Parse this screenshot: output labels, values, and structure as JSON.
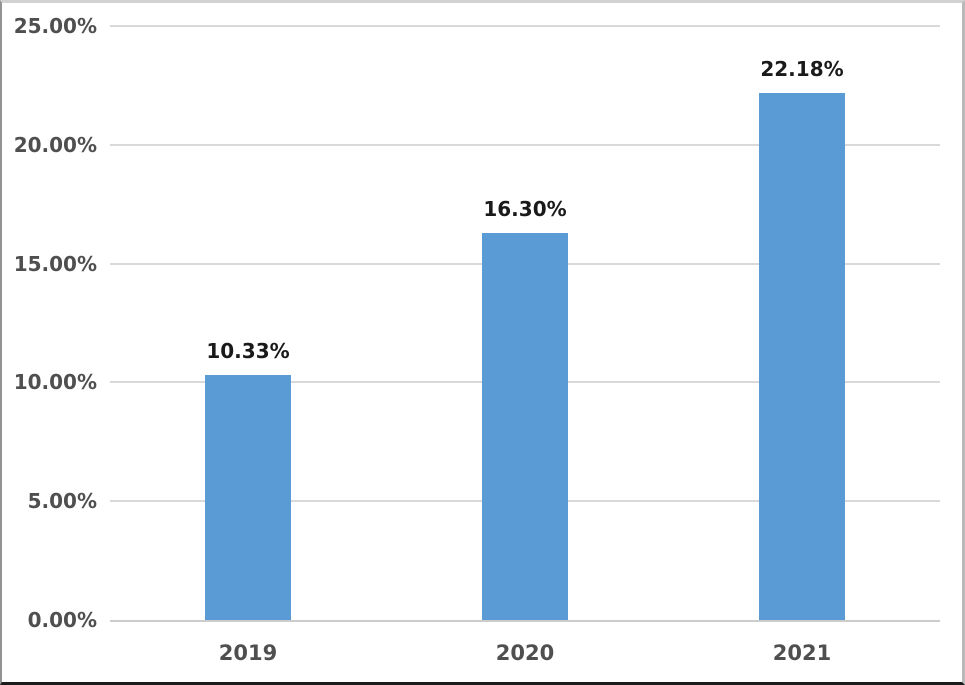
{
  "chart_data": {
    "type": "bar",
    "title": "",
    "categories": [
      "2019",
      "2020",
      "2021"
    ],
    "values": [
      10.33,
      16.3,
      22.18
    ],
    "data_labels": [
      "10.33%",
      "16.30%",
      "22.18%"
    ],
    "xlabel": "",
    "ylabel": "",
    "ylim": [
      0,
      25
    ],
    "yticks": [
      0,
      5,
      10,
      15,
      20,
      25
    ],
    "ytick_labels": [
      "0.00%",
      "5.00%",
      "10.00%",
      "15.00%",
      "20.00%",
      "25.00%"
    ],
    "grid": "horizontal-only",
    "legend": "none",
    "colors": {
      "bar_fill": "#5B9BD5",
      "gridline": "#D9D9D9",
      "axis_line": "#CCCCCC",
      "tick_label": "#4F4F4F",
      "data_label": "#1A1A1A",
      "background": "#FFFFFF"
    }
  }
}
